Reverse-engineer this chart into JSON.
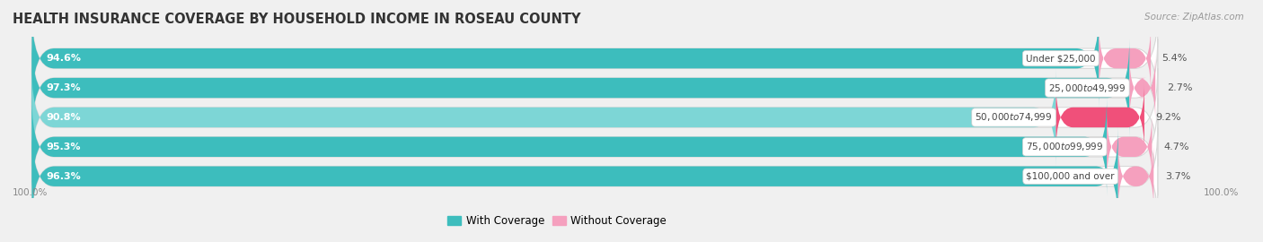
{
  "title": "HEALTH INSURANCE COVERAGE BY HOUSEHOLD INCOME IN ROSEAU COUNTY",
  "source": "Source: ZipAtlas.com",
  "categories": [
    "Under $25,000",
    "$25,000 to $49,999",
    "$50,000 to $74,999",
    "$75,000 to $99,999",
    "$100,000 and over"
  ],
  "with_coverage": [
    94.6,
    97.3,
    90.8,
    95.3,
    96.3
  ],
  "without_coverage": [
    5.4,
    2.7,
    9.2,
    4.7,
    3.7
  ],
  "color_coverage": "#3DBDBD",
  "color_coverage_light": "#7DD6D6",
  "color_without_dark": "#F0507A",
  "color_without_light": "#F5A0BE",
  "background_color": "#f0f0f0",
  "label_left_100": "100.0%",
  "label_right_100": "100.0%",
  "legend_coverage": "With Coverage",
  "legend_without": "Without Coverage",
  "title_fontsize": 10.5,
  "bar_height": 0.68,
  "total_width": 100.0
}
